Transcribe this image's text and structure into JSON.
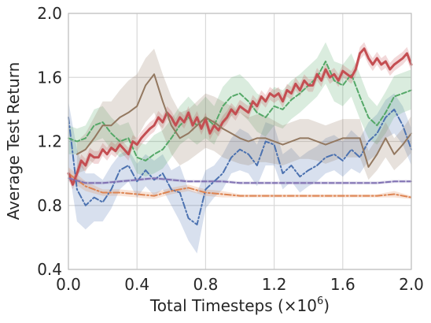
{
  "chart_data": {
    "type": "line",
    "title": "",
    "xlabel": "Total Timesteps (×10",
    "xlabel_superscript": "6",
    "xlabel_suffix": ")",
    "ylabel": "Average Test Return",
    "xlim": [
      0.0,
      2.0
    ],
    "ylim": [
      0.4,
      2.0
    ],
    "xticks": [
      0.0,
      0.4,
      0.8,
      1.2,
      1.6,
      2.0
    ],
    "yticks": [
      0.4,
      0.8,
      1.2,
      1.6,
      2.0
    ],
    "xtick_labels": [
      "0.0",
      "0.4",
      "0.8",
      "1.2",
      "1.6",
      "2.0"
    ],
    "ytick_labels": [
      "0.4",
      "0.8",
      "1.2",
      "1.6",
      "2.0"
    ],
    "grid": true,
    "legend": "none",
    "series": [
      {
        "color": "#4c72b0",
        "dash": "dashdot",
        "stroke_width": 2,
        "x": [
          0.0,
          0.05,
          0.1,
          0.15,
          0.2,
          0.25,
          0.3,
          0.35,
          0.4,
          0.45,
          0.5,
          0.55,
          0.6,
          0.65,
          0.7,
          0.75,
          0.8,
          0.85,
          0.9,
          0.95,
          1.0,
          1.05,
          1.1,
          1.15,
          1.2,
          1.25,
          1.3,
          1.35,
          1.4,
          1.45,
          1.5,
          1.55,
          1.6,
          1.65,
          1.7,
          1.75,
          1.8,
          1.85,
          1.9,
          1.95,
          2.0
        ],
        "y": [
          1.35,
          0.9,
          0.8,
          0.85,
          0.82,
          0.9,
          1.02,
          1.05,
          0.95,
          1.02,
          0.96,
          1.0,
          0.9,
          0.88,
          0.72,
          0.68,
          0.9,
          0.95,
          1.0,
          1.1,
          1.15,
          1.12,
          1.05,
          1.2,
          1.18,
          1.0,
          1.05,
          0.98,
          1.02,
          1.05,
          1.1,
          1.12,
          1.08,
          1.15,
          1.1,
          1.2,
          1.25,
          1.35,
          1.4,
          1.3,
          1.15
        ],
        "lower": [
          1.05,
          0.7,
          0.65,
          0.7,
          0.7,
          0.78,
          0.9,
          0.95,
          0.85,
          0.92,
          0.86,
          0.9,
          0.8,
          0.7,
          0.58,
          0.5,
          0.78,
          0.85,
          0.9,
          1.0,
          1.02,
          1.0,
          0.92,
          1.05,
          1.05,
          0.9,
          0.95,
          0.88,
          0.92,
          0.95,
          1.0,
          1.02,
          0.98,
          1.03,
          1.0,
          1.08,
          1.12,
          1.22,
          1.25,
          1.18,
          1.05
        ],
        "upper": [
          1.45,
          1.15,
          1.0,
          1.0,
          0.96,
          1.05,
          1.12,
          1.15,
          1.06,
          1.12,
          1.08,
          1.12,
          1.02,
          1.05,
          0.9,
          0.88,
          1.02,
          1.05,
          1.12,
          1.22,
          1.28,
          1.25,
          1.18,
          1.32,
          1.3,
          1.12,
          1.16,
          1.1,
          1.14,
          1.17,
          1.22,
          1.24,
          1.2,
          1.27,
          1.22,
          1.32,
          1.37,
          1.46,
          1.5,
          1.42,
          1.28
        ]
      },
      {
        "color": "#dd8452",
        "dash": "dashdot",
        "stroke_width": 2,
        "x": [
          0.0,
          0.1,
          0.2,
          0.3,
          0.4,
          0.5,
          0.6,
          0.7,
          0.8,
          0.9,
          1.0,
          1.1,
          1.2,
          1.3,
          1.4,
          1.5,
          1.6,
          1.7,
          1.8,
          1.9,
          2.0
        ],
        "y": [
          1.0,
          0.92,
          0.88,
          0.88,
          0.87,
          0.86,
          0.89,
          0.91,
          0.88,
          0.87,
          0.86,
          0.86,
          0.86,
          0.86,
          0.86,
          0.86,
          0.86,
          0.86,
          0.86,
          0.87,
          0.85
        ],
        "lower": [
          0.96,
          0.89,
          0.86,
          0.86,
          0.85,
          0.84,
          0.87,
          0.89,
          0.86,
          0.85,
          0.85,
          0.85,
          0.85,
          0.85,
          0.85,
          0.85,
          0.85,
          0.85,
          0.85,
          0.85,
          0.84
        ],
        "upper": [
          1.04,
          0.95,
          0.9,
          0.9,
          0.89,
          0.88,
          0.91,
          0.93,
          0.9,
          0.89,
          0.87,
          0.87,
          0.87,
          0.87,
          0.87,
          0.87,
          0.87,
          0.87,
          0.87,
          0.89,
          0.86
        ]
      },
      {
        "color": "#55a868",
        "dash": "dashed",
        "stroke_width": 2,
        "x": [
          0.0,
          0.05,
          0.1,
          0.15,
          0.2,
          0.25,
          0.3,
          0.35,
          0.4,
          0.45,
          0.5,
          0.55,
          0.6,
          0.65,
          0.7,
          0.75,
          0.8,
          0.85,
          0.9,
          0.95,
          1.0,
          1.05,
          1.1,
          1.15,
          1.2,
          1.25,
          1.3,
          1.35,
          1.4,
          1.45,
          1.5,
          1.55,
          1.6,
          1.65,
          1.7,
          1.75,
          1.8,
          1.85,
          1.9,
          1.95,
          2.0
        ],
        "y": [
          1.22,
          1.2,
          1.22,
          1.3,
          1.32,
          1.25,
          1.2,
          1.22,
          1.1,
          1.08,
          1.12,
          1.15,
          1.22,
          1.3,
          1.35,
          1.3,
          1.35,
          1.3,
          1.42,
          1.48,
          1.5,
          1.45,
          1.38,
          1.35,
          1.42,
          1.4,
          1.46,
          1.5,
          1.55,
          1.6,
          1.7,
          1.58,
          1.55,
          1.62,
          1.48,
          1.35,
          1.3,
          1.38,
          1.48,
          1.5,
          1.52
        ],
        "lower": [
          1.12,
          1.12,
          1.15,
          1.2,
          1.22,
          1.15,
          1.1,
          1.12,
          1.0,
          0.98,
          1.0,
          1.03,
          1.1,
          1.18,
          1.22,
          1.18,
          1.22,
          1.18,
          1.3,
          1.36,
          1.38,
          1.33,
          1.26,
          1.23,
          1.3,
          1.28,
          1.34,
          1.38,
          1.43,
          1.48,
          1.56,
          1.45,
          1.42,
          1.48,
          1.34,
          1.22,
          1.18,
          1.25,
          1.35,
          1.38,
          1.4
        ],
        "upper": [
          1.3,
          1.28,
          1.3,
          1.4,
          1.42,
          1.35,
          1.3,
          1.32,
          1.2,
          1.18,
          1.24,
          1.27,
          1.34,
          1.42,
          1.48,
          1.42,
          1.48,
          1.42,
          1.54,
          1.6,
          1.62,
          1.57,
          1.5,
          1.47,
          1.54,
          1.52,
          1.58,
          1.62,
          1.67,
          1.72,
          1.82,
          1.7,
          1.68,
          1.75,
          1.62,
          1.48,
          1.42,
          1.51,
          1.61,
          1.63,
          1.65
        ]
      },
      {
        "color": "#c44e52",
        "dash": "solid",
        "stroke_width": 3,
        "x": [
          0.0,
          0.025,
          0.05,
          0.075,
          0.1,
          0.125,
          0.15,
          0.175,
          0.2,
          0.225,
          0.25,
          0.275,
          0.3,
          0.325,
          0.35,
          0.375,
          0.4,
          0.425,
          0.45,
          0.475,
          0.5,
          0.525,
          0.55,
          0.575,
          0.6,
          0.625,
          0.65,
          0.675,
          0.7,
          0.725,
          0.75,
          0.775,
          0.8,
          0.825,
          0.85,
          0.875,
          0.9,
          0.925,
          0.95,
          0.975,
          1.0,
          1.025,
          1.05,
          1.075,
          1.1,
          1.125,
          1.15,
          1.175,
          1.2,
          1.225,
          1.25,
          1.275,
          1.3,
          1.325,
          1.35,
          1.375,
          1.4,
          1.425,
          1.45,
          1.475,
          1.5,
          1.525,
          1.55,
          1.575,
          1.6,
          1.625,
          1.65,
          1.675,
          1.7,
          1.725,
          1.75,
          1.775,
          1.8,
          1.825,
          1.85,
          1.875,
          1.9,
          1.925,
          1.95,
          1.975,
          2.0
        ],
        "y": [
          1.0,
          0.93,
          1.0,
          1.08,
          1.05,
          1.12,
          1.1,
          1.1,
          1.15,
          1.12,
          1.16,
          1.14,
          1.18,
          1.15,
          1.12,
          1.2,
          1.18,
          1.22,
          1.25,
          1.28,
          1.3,
          1.35,
          1.32,
          1.38,
          1.35,
          1.3,
          1.35,
          1.32,
          1.38,
          1.3,
          1.35,
          1.28,
          1.34,
          1.25,
          1.3,
          1.27,
          1.32,
          1.35,
          1.4,
          1.37,
          1.42,
          1.4,
          1.38,
          1.45,
          1.42,
          1.48,
          1.45,
          1.5,
          1.48,
          1.5,
          1.45,
          1.52,
          1.5,
          1.56,
          1.52,
          1.58,
          1.55,
          1.55,
          1.62,
          1.58,
          1.65,
          1.6,
          1.62,
          1.58,
          1.64,
          1.62,
          1.6,
          1.65,
          1.75,
          1.78,
          1.72,
          1.68,
          1.72,
          1.68,
          1.7,
          1.65,
          1.68,
          1.7,
          1.72,
          1.75,
          1.68
        ],
        "lower": [
          0.96,
          0.9,
          0.96,
          1.04,
          1.01,
          1.08,
          1.06,
          1.06,
          1.11,
          1.08,
          1.12,
          1.1,
          1.14,
          1.11,
          1.08,
          1.16,
          1.14,
          1.18,
          1.21,
          1.24,
          1.26,
          1.31,
          1.28,
          1.34,
          1.31,
          1.26,
          1.31,
          1.28,
          1.34,
          1.26,
          1.31,
          1.24,
          1.3,
          1.21,
          1.26,
          1.23,
          1.28,
          1.31,
          1.36,
          1.33,
          1.38,
          1.36,
          1.34,
          1.41,
          1.38,
          1.44,
          1.41,
          1.46,
          1.44,
          1.46,
          1.41,
          1.48,
          1.46,
          1.52,
          1.48,
          1.54,
          1.51,
          1.51,
          1.58,
          1.54,
          1.61,
          1.56,
          1.58,
          1.54,
          1.6,
          1.58,
          1.56,
          1.61,
          1.71,
          1.74,
          1.68,
          1.64,
          1.68,
          1.64,
          1.66,
          1.61,
          1.64,
          1.66,
          1.68,
          1.71,
          1.64
        ],
        "upper": [
          1.04,
          0.97,
          1.04,
          1.12,
          1.09,
          1.16,
          1.14,
          1.14,
          1.19,
          1.16,
          1.2,
          1.18,
          1.22,
          1.19,
          1.16,
          1.24,
          1.22,
          1.26,
          1.29,
          1.32,
          1.34,
          1.39,
          1.36,
          1.42,
          1.39,
          1.34,
          1.39,
          1.36,
          1.42,
          1.34,
          1.39,
          1.32,
          1.38,
          1.29,
          1.34,
          1.31,
          1.36,
          1.39,
          1.44,
          1.41,
          1.46,
          1.44,
          1.42,
          1.49,
          1.46,
          1.52,
          1.49,
          1.54,
          1.52,
          1.54,
          1.49,
          1.56,
          1.54,
          1.6,
          1.56,
          1.62,
          1.59,
          1.59,
          1.66,
          1.62,
          1.69,
          1.64,
          1.66,
          1.62,
          1.68,
          1.66,
          1.64,
          1.69,
          1.79,
          1.82,
          1.76,
          1.72,
          1.76,
          1.72,
          1.74,
          1.69,
          1.72,
          1.74,
          1.76,
          1.79,
          1.72
        ]
      },
      {
        "color": "#8172b3",
        "dash": "dashed",
        "stroke_width": 2,
        "x": [
          0.0,
          0.1,
          0.2,
          0.3,
          0.4,
          0.5,
          0.6,
          0.7,
          0.8,
          0.9,
          1.0,
          1.1,
          1.2,
          1.3,
          1.4,
          1.5,
          1.6,
          1.7,
          1.8,
          1.9,
          2.0
        ],
        "y": [
          0.97,
          0.94,
          0.94,
          0.95,
          0.96,
          0.97,
          0.96,
          0.95,
          0.95,
          0.95,
          0.94,
          0.94,
          0.94,
          0.94,
          0.94,
          0.94,
          0.94,
          0.94,
          0.94,
          0.95,
          0.95
        ],
        "lower": [
          0.95,
          0.93,
          0.93,
          0.94,
          0.95,
          0.96,
          0.95,
          0.94,
          0.94,
          0.94,
          0.93,
          0.93,
          0.93,
          0.93,
          0.93,
          0.93,
          0.93,
          0.93,
          0.93,
          0.94,
          0.94
        ],
        "upper": [
          0.99,
          0.95,
          0.95,
          0.96,
          0.97,
          0.98,
          0.97,
          0.96,
          0.96,
          0.96,
          0.95,
          0.95,
          0.95,
          0.95,
          0.95,
          0.95,
          0.95,
          0.95,
          0.95,
          0.96,
          0.96
        ]
      },
      {
        "color": "#937860",
        "dash": "solid",
        "stroke_width": 2,
        "x": [
          0.05,
          0.1,
          0.15,
          0.2,
          0.25,
          0.3,
          0.35,
          0.4,
          0.45,
          0.5,
          0.55,
          0.6,
          0.65,
          0.7,
          0.75,
          0.8,
          0.85,
          0.9,
          0.95,
          1.0,
          1.05,
          1.1,
          1.15,
          1.2,
          1.25,
          1.3,
          1.35,
          1.4,
          1.45,
          1.5,
          1.55,
          1.6,
          1.65,
          1.7,
          1.75,
          1.8,
          1.85,
          1.9,
          1.95,
          2.0
        ],
        "y": [
          1.12,
          1.15,
          1.22,
          1.3,
          1.3,
          1.35,
          1.38,
          1.42,
          1.55,
          1.62,
          1.45,
          1.3,
          1.22,
          1.25,
          1.3,
          1.35,
          1.32,
          1.28,
          1.25,
          1.22,
          1.2,
          1.22,
          1.22,
          1.2,
          1.18,
          1.2,
          1.22,
          1.22,
          1.2,
          1.18,
          1.2,
          1.22,
          1.22,
          1.22,
          1.04,
          1.12,
          1.22,
          1.12,
          1.18,
          1.25
        ],
        "lower": [
          1.0,
          1.02,
          1.08,
          1.15,
          1.14,
          1.18,
          1.2,
          1.22,
          1.32,
          1.38,
          1.25,
          1.12,
          1.05,
          1.08,
          1.12,
          1.16,
          1.14,
          1.1,
          1.08,
          1.06,
          1.05,
          1.07,
          1.07,
          1.06,
          1.05,
          1.07,
          1.09,
          1.09,
          1.08,
          1.06,
          1.08,
          1.1,
          1.1,
          1.1,
          0.96,
          1.02,
          1.1,
          1.02,
          1.07,
          1.13
        ],
        "upper": [
          1.2,
          1.25,
          1.35,
          1.45,
          1.45,
          1.52,
          1.58,
          1.62,
          1.72,
          1.78,
          1.62,
          1.48,
          1.38,
          1.4,
          1.45,
          1.5,
          1.48,
          1.45,
          1.42,
          1.38,
          1.35,
          1.37,
          1.36,
          1.33,
          1.3,
          1.32,
          1.34,
          1.34,
          1.32,
          1.3,
          1.32,
          1.34,
          1.34,
          1.34,
          1.14,
          1.22,
          1.32,
          1.22,
          1.28,
          1.36
        ]
      }
    ]
  }
}
